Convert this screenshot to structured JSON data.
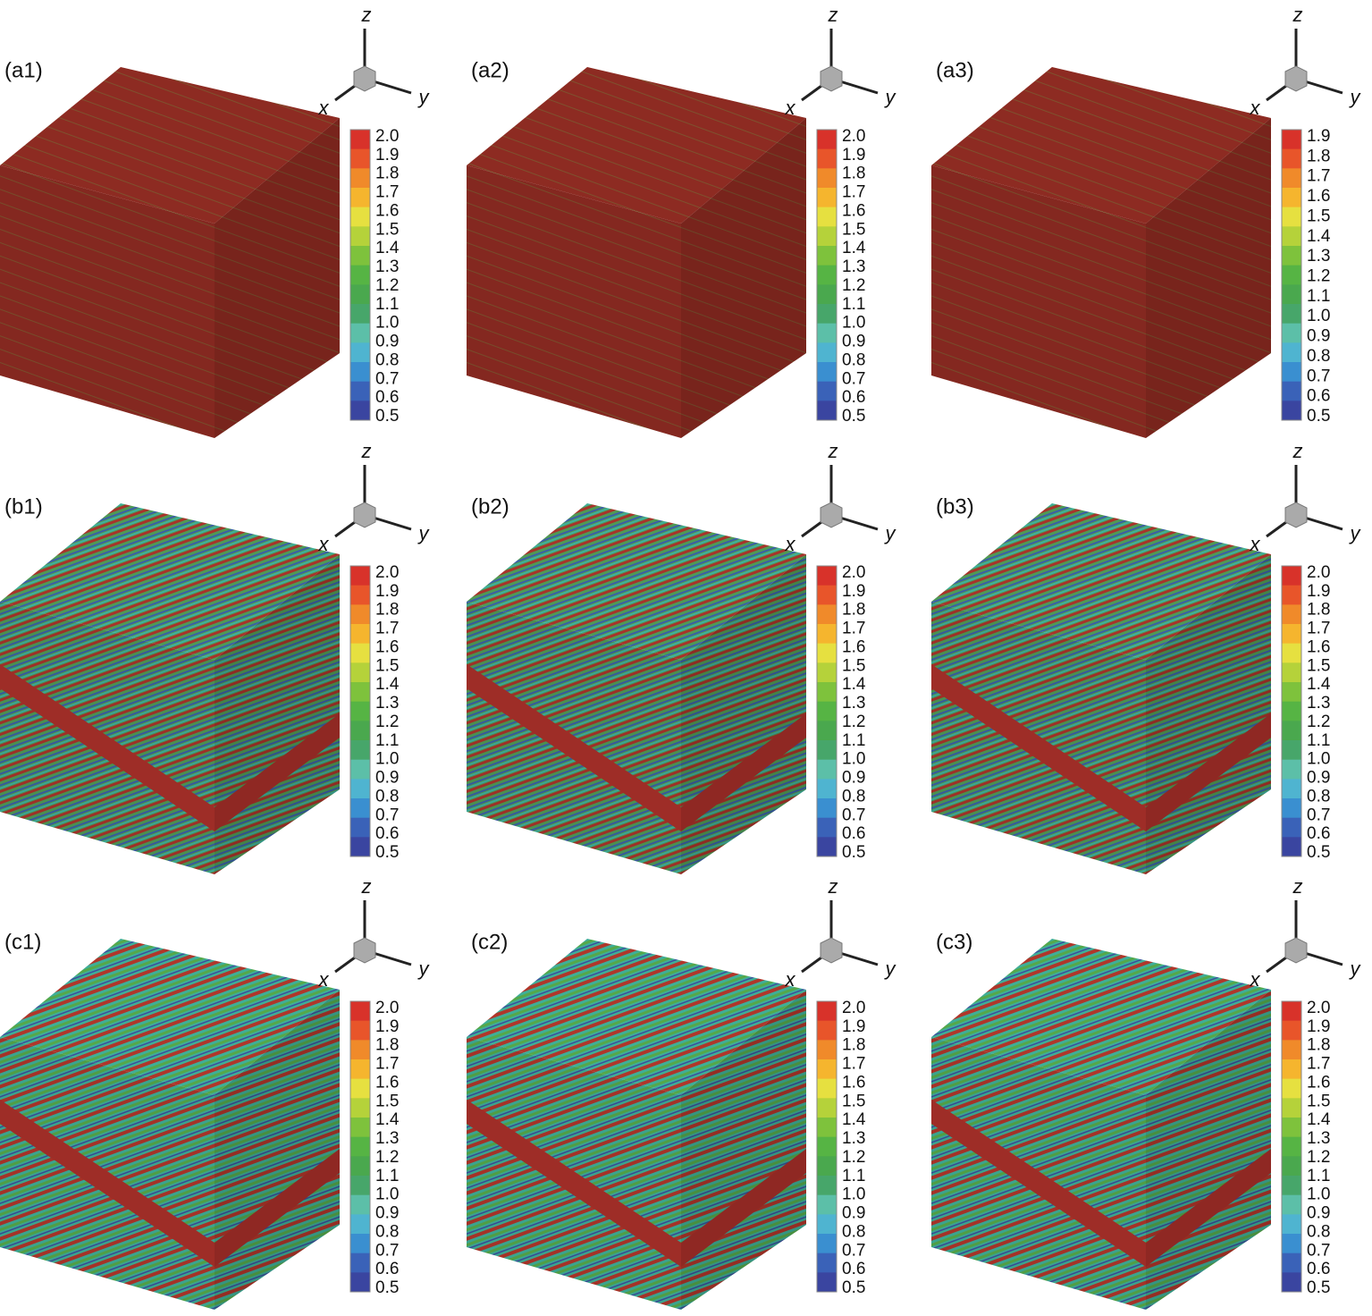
{
  "panels": [
    {
      "label": "(a1)",
      "axes": {
        "x": "x",
        "y": "y",
        "z": "z"
      },
      "colorbar": [
        "2.0",
        "1.9",
        "1.8",
        "1.7",
        "1.6",
        "1.5",
        "1.4",
        "1.3",
        "1.2",
        "1.1",
        "1.0",
        "0.9",
        "0.8",
        "0.7",
        "0.6",
        "0.5"
      ]
    },
    {
      "label": "(a2)",
      "axes": {
        "x": "x",
        "y": "y",
        "z": "z"
      },
      "colorbar": [
        "2.0",
        "1.9",
        "1.8",
        "1.7",
        "1.6",
        "1.5",
        "1.4",
        "1.3",
        "1.2",
        "1.1",
        "1.0",
        "0.9",
        "0.8",
        "0.7",
        "0.6",
        "0.5"
      ]
    },
    {
      "label": "(a3)",
      "axes": {
        "x": "x",
        "y": "y",
        "z": "z"
      },
      "colorbar": [
        "1.9",
        "1.8",
        "1.7",
        "1.6",
        "1.5",
        "1.4",
        "1.3",
        "1.2",
        "1.1",
        "1.0",
        "0.9",
        "0.8",
        "0.7",
        "0.6",
        "0.5"
      ]
    },
    {
      "label": "(b1)",
      "axes": {
        "x": "x",
        "y": "y",
        "z": "z"
      },
      "colorbar": [
        "2.0",
        "1.9",
        "1.8",
        "1.7",
        "1.6",
        "1.5",
        "1.4",
        "1.3",
        "1.2",
        "1.1",
        "1.0",
        "0.9",
        "0.8",
        "0.7",
        "0.6",
        "0.5"
      ]
    },
    {
      "label": "(b2)",
      "axes": {
        "x": "x",
        "y": "y",
        "z": "z"
      },
      "colorbar": [
        "2.0",
        "1.9",
        "1.8",
        "1.7",
        "1.6",
        "1.5",
        "1.4",
        "1.3",
        "1.2",
        "1.1",
        "1.0",
        "0.9",
        "0.8",
        "0.7",
        "0.6",
        "0.5"
      ]
    },
    {
      "label": "(b3)",
      "axes": {
        "x": "x",
        "y": "y",
        "z": "z"
      },
      "colorbar": [
        "2.0",
        "1.9",
        "1.8",
        "1.7",
        "1.6",
        "1.5",
        "1.4",
        "1.3",
        "1.2",
        "1.1",
        "1.0",
        "0.9",
        "0.8",
        "0.7",
        "0.6",
        "0.5"
      ]
    },
    {
      "label": "(c1)",
      "axes": {
        "x": "x",
        "y": "y",
        "z": "z"
      },
      "colorbar": [
        "2.0",
        "1.9",
        "1.8",
        "1.7",
        "1.6",
        "1.5",
        "1.4",
        "1.3",
        "1.2",
        "1.1",
        "1.0",
        "0.9",
        "0.8",
        "0.7",
        "0.6",
        "0.5"
      ]
    },
    {
      "label": "(c2)",
      "axes": {
        "x": "x",
        "y": "y",
        "z": "z"
      },
      "colorbar": [
        "2.0",
        "1.9",
        "1.8",
        "1.7",
        "1.6",
        "1.5",
        "1.4",
        "1.3",
        "1.2",
        "1.1",
        "1.0",
        "0.9",
        "0.8",
        "0.7",
        "0.6",
        "0.5"
      ]
    },
    {
      "label": "(c3)",
      "axes": {
        "x": "x",
        "y": "y",
        "z": "z"
      },
      "colorbar": [
        "2.0",
        "1.9",
        "1.8",
        "1.7",
        "1.6",
        "1.5",
        "1.4",
        "1.3",
        "1.2",
        "1.1",
        "1.0",
        "0.9",
        "0.8",
        "0.7",
        "0.6",
        "0.5"
      ]
    }
  ]
}
